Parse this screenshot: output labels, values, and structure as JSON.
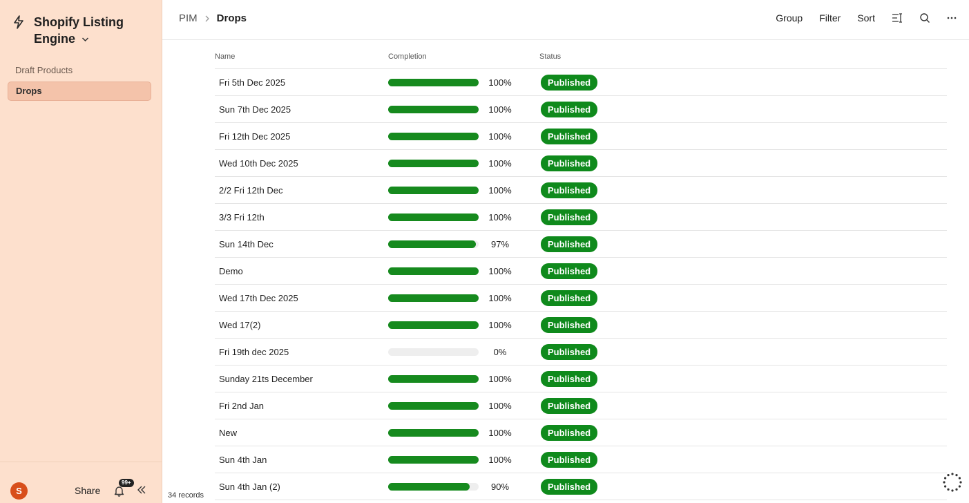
{
  "app": {
    "title": "Shopify Listing Engine"
  },
  "sidebar": {
    "items": [
      {
        "label": "Draft Products"
      },
      {
        "label": "Drops"
      }
    ],
    "avatar_initial": "S",
    "share_label": "Share",
    "notification_badge": "99+"
  },
  "breadcrumb": {
    "root": "PIM",
    "current": "Drops"
  },
  "toolbar": {
    "group": "Group",
    "filter": "Filter",
    "sort": "Sort"
  },
  "table": {
    "columns": [
      "Name",
      "Completion",
      "Status"
    ],
    "rows": [
      {
        "name": "Fri 5th Dec 2025",
        "completion": 100,
        "pct_label": "100%",
        "status": "Published"
      },
      {
        "name": "Sun 7th Dec 2025",
        "completion": 100,
        "pct_label": "100%",
        "status": "Published"
      },
      {
        "name": "Fri 12th Dec 2025",
        "completion": 100,
        "pct_label": "100%",
        "status": "Published"
      },
      {
        "name": "Wed 10th Dec 2025",
        "completion": 100,
        "pct_label": "100%",
        "status": "Published"
      },
      {
        "name": "2/2 Fri 12th Dec",
        "completion": 100,
        "pct_label": "100%",
        "status": "Published"
      },
      {
        "name": "3/3 Fri 12th",
        "completion": 100,
        "pct_label": "100%",
        "status": "Published"
      },
      {
        "name": "Sun 14th Dec",
        "completion": 97,
        "pct_label": "97%",
        "status": "Published"
      },
      {
        "name": "Demo",
        "completion": 100,
        "pct_label": "100%",
        "status": "Published"
      },
      {
        "name": "Wed 17th Dec 2025",
        "completion": 100,
        "pct_label": "100%",
        "status": "Published"
      },
      {
        "name": "Wed 17(2)",
        "completion": 100,
        "pct_label": "100%",
        "status": "Published"
      },
      {
        "name": "Fri 19th dec 2025",
        "completion": 0,
        "pct_label": "0%",
        "status": "Published"
      },
      {
        "name": "Sunday 21ts December",
        "completion": 100,
        "pct_label": "100%",
        "status": "Published"
      },
      {
        "name": "Fri 2nd Jan",
        "completion": 100,
        "pct_label": "100%",
        "status": "Published"
      },
      {
        "name": "New",
        "completion": 100,
        "pct_label": "100%",
        "status": "Published"
      },
      {
        "name": "Sun 4th Jan",
        "completion": 100,
        "pct_label": "100%",
        "status": "Published"
      },
      {
        "name": "Sun 4th Jan (2)",
        "completion": 90,
        "pct_label": "90%",
        "status": "Published"
      }
    ]
  },
  "footer": {
    "record_count": "34 records"
  },
  "colors": {
    "sidebar_bg": "#fde0cd",
    "active_item_bg": "#f4c3aa",
    "success_green": "#0f8a1c",
    "avatar": "#d84e1a"
  }
}
